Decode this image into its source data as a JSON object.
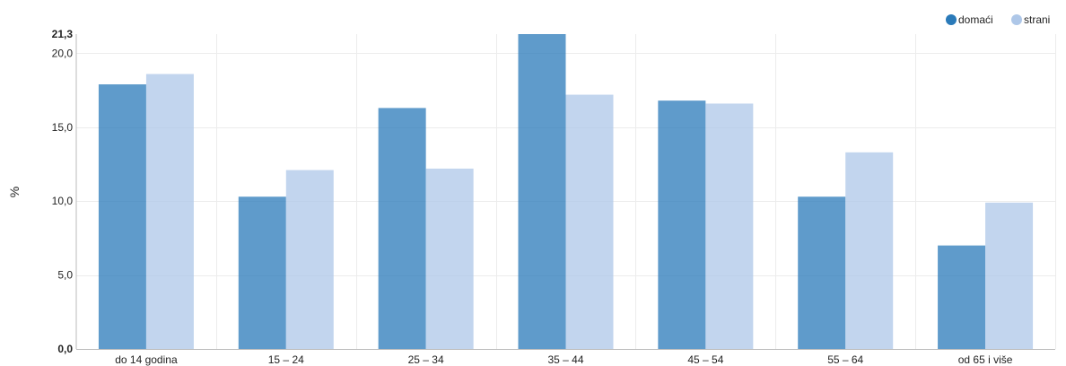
{
  "chart_data": {
    "type": "bar",
    "categories": [
      "do 14 godina",
      "15 – 24",
      "25 – 34",
      "35 – 44",
      "45 – 54",
      "55 – 64",
      "od 65 i više"
    ],
    "series": [
      {
        "name": "domaći",
        "values": [
          17.9,
          10.3,
          16.3,
          21.3,
          16.8,
          10.3,
          7.0
        ],
        "color": "#2a7ab9"
      },
      {
        "name": "strani",
        "values": [
          18.6,
          12.1,
          12.2,
          17.2,
          16.6,
          13.3,
          9.9
        ],
        "color": "#aec7e8"
      }
    ],
    "title": "",
    "xlabel": "",
    "ylabel": "%",
    "ylim": [
      0,
      21.3
    ],
    "yticks": [
      "0,0",
      "5,0",
      "10,0",
      "15,0",
      "20,0",
      "21,3"
    ],
    "ytick_values": [
      0,
      5,
      10,
      15,
      20,
      21.3
    ],
    "legend_position": "top-right",
    "grid": true
  }
}
